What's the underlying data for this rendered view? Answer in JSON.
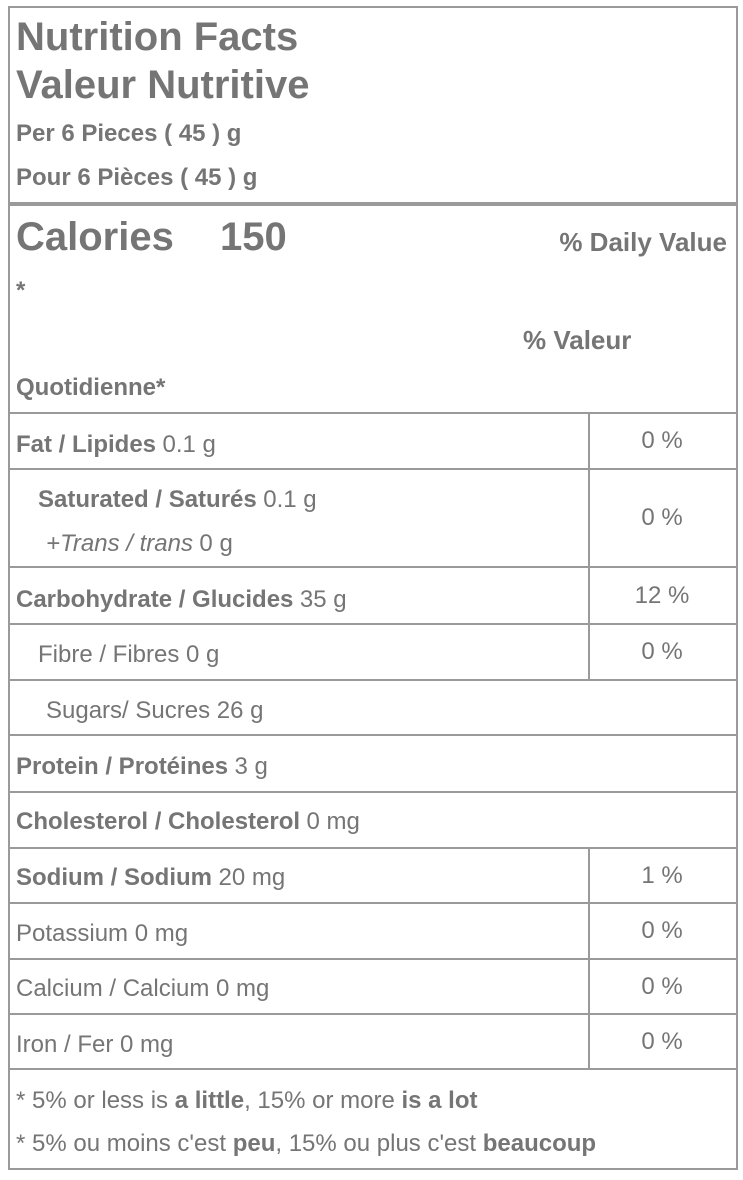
{
  "header": {
    "title": "Nutrition Facts",
    "title_fr": "Valeur Nutritive",
    "serving": "Per 6 Pieces ( 45 ) g",
    "serving_fr": "Pour 6 Pièces ( 45 ) g"
  },
  "calories": {
    "label": "Calories",
    "value": 150,
    "dv_heading": "% Daily Value",
    "asterisk": "*",
    "dv_heading_fr_1": "% Valeur",
    "dv_heading_fr_2": "Quotidienne*"
  },
  "rows": [
    {
      "nutrient": "Fat / Lipides",
      "amount": "0.1 g",
      "dv": "0 %"
    },
    {
      "nutrient": "Saturated / Saturés",
      "amount": "0.1 g",
      "sub_nutrient": "+Trans / trans",
      "sub_amount": "0 g",
      "dv": "0 %"
    },
    {
      "nutrient": "Carbohydrate / Glucides",
      "amount": "35 g",
      "dv": "12 %"
    },
    {
      "text": "Fibre / Fibres 0 g",
      "dv": "0 %"
    },
    {
      "text": "Sugars/ Sucres 26 g"
    },
    {
      "nutrient": "Protein / Protéines",
      "amount": "3 g"
    },
    {
      "nutrient": "Cholesterol / Cholesterol",
      "amount": "0 mg"
    },
    {
      "nutrient": "Sodium / Sodium",
      "amount": "20 mg",
      "dv": "1 %"
    },
    {
      "text": "Potassium 0 mg",
      "dv": "0 %"
    },
    {
      "text": "Calcium / Calcium 0 mg",
      "dv": "0 %"
    },
    {
      "text": "Iron / Fer 0 mg",
      "dv": "0 %"
    }
  ],
  "footnotes": [
    [
      "* 5% or less is ",
      "a little",
      ", 15% or more ",
      "is a lot"
    ],
    [
      "* 5% ou moins c'est ",
      "peu",
      ", 15% ou plus c'est ",
      "beaucoup"
    ]
  ]
}
